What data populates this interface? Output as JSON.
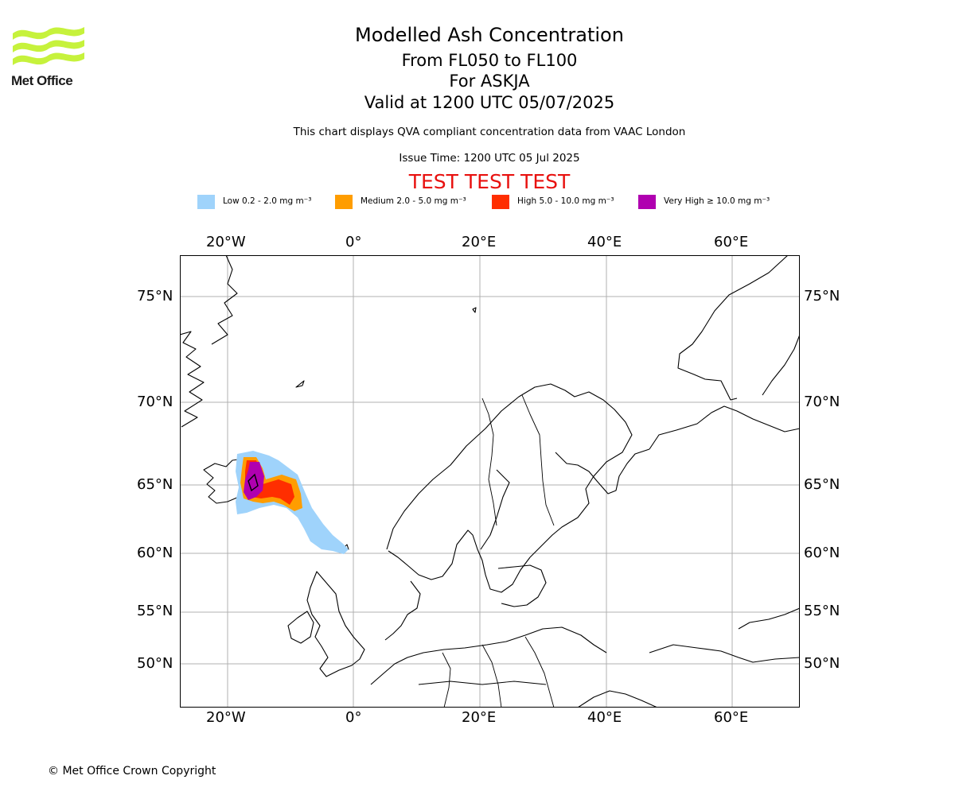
{
  "logo": {
    "text": "Met Office"
  },
  "titles": {
    "main": "Modelled Ash Concentration",
    "levels": "From FL050 to FL100",
    "volcano": "For ASKJA",
    "valid": "Valid at 1200 UTC 05/07/2025",
    "compliance": "This chart displays QVA compliant concentration data from VAAC London",
    "issue": "Issue Time: 1200 UTC 05 Jul 2025",
    "test_banner": "TEST TEST TEST"
  },
  "legend": [
    {
      "label": "Low 0.2 - 2.0 mg m⁻³",
      "color": "#9fd3fb"
    },
    {
      "label": "Medium 2.0 - 5.0 mg m⁻³",
      "color": "#ff9d00"
    },
    {
      "label": "High 5.0 - 10.0 mg m⁻³",
      "color": "#ff2e00"
    },
    {
      "label": "Very High  ≥  10.0 mg m⁻³",
      "color": "#b000b0"
    }
  ],
  "map": {
    "lon_ticks": [
      "20°W",
      "0°",
      "20°E",
      "40°E",
      "60°E"
    ],
    "lat_ticks": [
      "75°N",
      "70°N",
      "65°N",
      "60°N",
      "55°N",
      "50°N"
    ],
    "grid": true,
    "coastline_color": "#000000",
    "gridline_color": "#b0b0b0"
  },
  "copyright": "© Met Office Crown Copyright"
}
